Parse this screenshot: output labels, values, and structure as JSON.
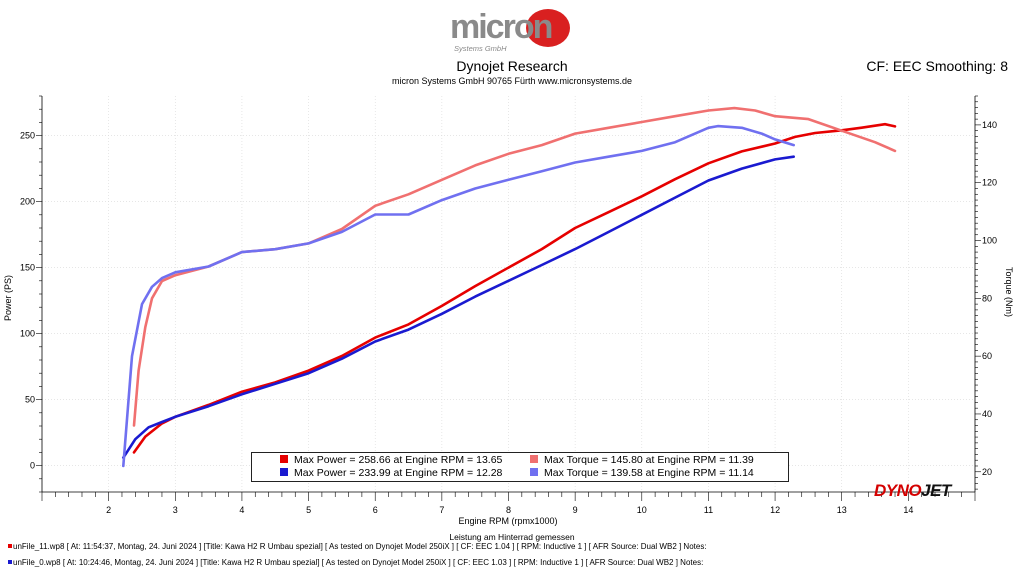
{
  "header": {
    "logo_text": "micron",
    "logo_subtext": "Systems GmbH",
    "title": "Dynojet Research",
    "subtitle": "micron Systems GmbH  90765 Fürth www.micronsystems.de",
    "cf_label": "CF: EEC Smoothing: 8"
  },
  "brand": {
    "part1": "DYNO",
    "part2": "JET"
  },
  "colors": {
    "power_run1": "#e60000",
    "power_run2": "#1a1ad0",
    "torque_run1": "#f07070",
    "torque_run2": "#7070f0"
  },
  "chart_data": {
    "type": "line",
    "xlabel": "Engine RPM (rpmx1000)",
    "ylabel_left": "Power (PS)",
    "ylabel_right": "Torque (Nm)",
    "xlim": [
      1.0,
      15.0
    ],
    "ylim_left": [
      -20,
      280
    ],
    "ylim_right": [
      13,
      150
    ],
    "x_ticks": [
      2,
      3,
      4,
      5,
      6,
      7,
      8,
      9,
      10,
      11,
      12,
      13,
      14
    ],
    "y_ticks_left": [
      0,
      50,
      100,
      150,
      200,
      250
    ],
    "y_ticks_right": [
      20,
      40,
      60,
      80,
      100,
      120,
      140
    ],
    "grid": true,
    "series": [
      {
        "name": "Max Power = 258.66 at Engine RPM = 13.65",
        "axis": "left",
        "x": [
          2.38,
          2.55,
          2.8,
          3.0,
          3.5,
          4.0,
          4.5,
          5.0,
          5.5,
          6.0,
          6.5,
          7.0,
          7.5,
          8.0,
          8.5,
          9.0,
          9.5,
          10.0,
          10.5,
          11.0,
          11.5,
          12.0,
          12.3,
          12.6,
          13.0,
          13.3,
          13.65,
          13.8
        ],
        "y": [
          10,
          22,
          32,
          37,
          46,
          56,
          63,
          72,
          83,
          97,
          107,
          121,
          136,
          150,
          164,
          180,
          192,
          204,
          217,
          229,
          238,
          244,
          249,
          252,
          254,
          256,
          258.66,
          257
        ]
      },
      {
        "name": "Max Power = 233.99 at Engine RPM = 12.28",
        "axis": "left",
        "x": [
          2.22,
          2.4,
          2.6,
          2.8,
          3.0,
          3.5,
          4.0,
          4.5,
          5.0,
          5.5,
          6.0,
          6.5,
          7.0,
          7.5,
          8.0,
          8.5,
          9.0,
          9.5,
          10.0,
          10.5,
          11.0,
          11.5,
          12.0,
          12.28
        ],
        "y": [
          6,
          20,
          29,
          33,
          37,
          45,
          54,
          62,
          70,
          81,
          94,
          103,
          115,
          128,
          140,
          152,
          164,
          177,
          190,
          203,
          216,
          225,
          232,
          233.99
        ]
      },
      {
        "name": "Max Torque = 145.80 at Engine RPM = 11.39",
        "axis": "right",
        "x": [
          2.38,
          2.45,
          2.55,
          2.65,
          2.8,
          3.0,
          3.5,
          4.0,
          4.5,
          5.0,
          5.5,
          6.0,
          6.5,
          7.0,
          7.5,
          8.0,
          8.5,
          9.0,
          9.5,
          10.0,
          10.5,
          11.0,
          11.39,
          11.7,
          12.0,
          12.5,
          13.0,
          13.5,
          13.8
        ],
        "y": [
          36,
          55,
          70,
          80,
          86,
          88,
          91,
          96,
          97,
          99,
          104,
          112,
          116,
          121,
          126,
          130,
          133,
          137,
          139,
          141,
          143,
          145,
          145.8,
          145,
          143,
          142,
          138,
          134,
          131
        ]
      },
      {
        "name": "Max Torque = 139.58 at Engine RPM = 11.14",
        "axis": "right",
        "x": [
          2.22,
          2.35,
          2.5,
          2.65,
          2.8,
          3.0,
          3.5,
          4.0,
          4.5,
          5.0,
          5.5,
          6.0,
          6.5,
          7.0,
          7.5,
          8.0,
          8.5,
          9.0,
          9.5,
          10.0,
          10.5,
          11.0,
          11.14,
          11.5,
          11.8,
          12.0,
          12.28
        ],
        "y": [
          22,
          60,
          78,
          84,
          87,
          89,
          91,
          96,
          97,
          99,
          103,
          109,
          109,
          114,
          118,
          121,
          124,
          127,
          129,
          131,
          134,
          139,
          139.58,
          139,
          137,
          135,
          133
        ]
      }
    ],
    "annotations": {
      "footer_note": "Leistung am Hinterrad gemessen"
    }
  },
  "legend": {
    "entries": [
      {
        "label": "Max Power = 258.66 at Engine RPM = 13.65",
        "color": "#e60000"
      },
      {
        "label": "Max Torque = 145.80 at Engine RPM = 11.39",
        "color": "#f07070"
      },
      {
        "label": "Max Power = 233.99 at Engine RPM = 12.28",
        "color": "#1a1ad0"
      },
      {
        "label": "Max Torque = 139.58 at Engine RPM = 11.14",
        "color": "#7070f0"
      }
    ]
  },
  "runs": [
    {
      "file": "unFile_11.wp8",
      "info": "[ At: 11:54:37, Montag, 24. Juni 2024 ] [Title: Kawa H2 R Umbau spezial]  [ As tested on Dynojet Model 250iX ] [ CF:  EEC 1.04 ] [ RPM: Inductive 1 ] [ AFR Source: Dual WB2 ] Notes:",
      "color": "#e60000"
    },
    {
      "file": "unFile_0.wp8",
      "info": "[ At: 10:24:46, Montag, 24. Juni 2024 ] [Title: Kawa H2 R Umbau spezial]  [ As tested on Dynojet Model 250iX ] [ CF:  EEC 1.03 ] [ RPM: Inductive 1 ] [ AFR Source: Dual WB2 ] Notes:",
      "color": "#1a1ad0"
    }
  ]
}
